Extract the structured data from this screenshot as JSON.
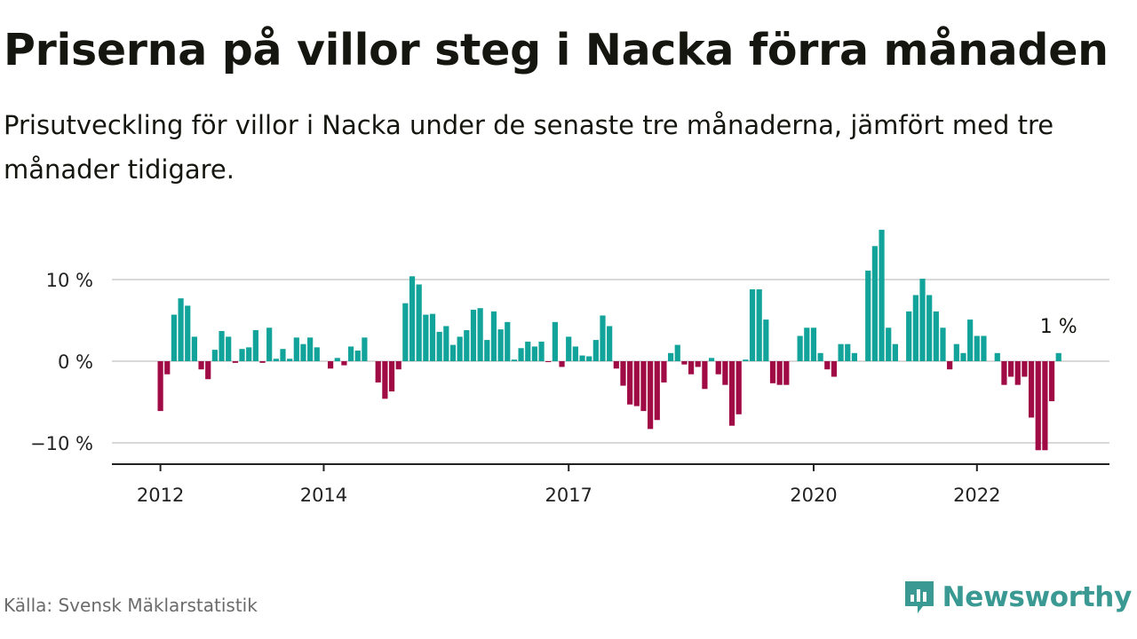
{
  "title": "Priserna på villor steg i Nacka förra månaden",
  "subtitle": "Prisutveckling för villor i Nacka under de senaste tre månaderna, jämfört med tre månader tidigare.",
  "source": "Källa: Svensk Mäklarstatistik",
  "brand": {
    "name": "Newsworthy",
    "icon": "newsworthy-logo-icon",
    "color": "#3a9a93"
  },
  "colors": {
    "positive": "#12a39a",
    "negative": "#a00a45",
    "grid": "#d9d9d9",
    "axis": "#222222"
  },
  "chart_data": {
    "type": "bar",
    "x_start": "2012-01",
    "x_end": "2023-01",
    "series": [
      {
        "values": [
          -6.1,
          -1.6,
          5.7,
          7.7,
          6.8,
          3.0,
          -1.0,
          -2.2,
          1.4,
          3.7,
          3.0,
          -0.2,
          1.5,
          1.7,
          3.8,
          -0.2,
          4.1,
          0.3,
          1.5,
          0.3,
          2.9,
          2.1,
          2.9,
          1.7,
          0.0,
          -0.9,
          0.4,
          -0.5,
          1.8,
          1.3,
          2.9,
          0.0,
          -2.6,
          -4.6,
          -3.7,
          -1.0,
          7.1,
          10.4,
          9.4,
          5.7,
          5.8,
          3.6,
          4.3,
          2.0,
          3.0,
          3.8,
          6.3,
          6.5,
          2.6,
          6.1,
          3.9,
          4.8,
          0.2,
          1.6,
          2.4,
          1.8,
          2.4,
          -0.1,
          4.8,
          -0.7,
          3.0,
          1.8,
          0.7,
          0.6,
          2.6,
          5.6,
          4.3,
          -0.9,
          -3.0,
          -5.3,
          -5.5,
          -6.1,
          -8.3,
          -7.2,
          -2.6,
          1.0,
          2.0,
          -0.4,
          -1.6,
          -0.7,
          -3.4,
          0.4,
          -1.6,
          -2.9,
          -7.9,
          -6.5,
          0.2,
          8.8,
          8.8,
          5.1,
          -2.7,
          -2.9,
          -2.9,
          0.0,
          3.1,
          4.1,
          4.1,
          1.0,
          -1.0,
          -1.9,
          2.1,
          2.1,
          1.0,
          0.0,
          11.1,
          14.1,
          16.1,
          4.1,
          2.1,
          0.0,
          6.1,
          8.1,
          10.1,
          8.1,
          6.1,
          4.1,
          -1.0,
          2.1,
          1.0,
          5.1,
          3.1,
          3.1,
          0.0,
          1.0,
          -2.9,
          -1.9,
          -2.9,
          -1.9,
          -6.9,
          -10.9,
          -10.9,
          -4.9,
          1.0
        ]
      }
    ],
    "yticks": [
      {
        "value": -10,
        "label": "−10 %"
      },
      {
        "value": 0,
        "label": "0 %"
      },
      {
        "value": 10,
        "label": "10 %"
      }
    ],
    "xticks": [
      {
        "date": "2012-01",
        "label": "2012"
      },
      {
        "date": "2014-01",
        "label": "2014"
      },
      {
        "date": "2017-01",
        "label": "2017"
      },
      {
        "date": "2020-01",
        "label": "2020"
      },
      {
        "date": "2022-01",
        "label": "2022"
      }
    ],
    "ylim": [
      -12.5,
      17
    ],
    "last_value_label": "1 %",
    "grid": true
  }
}
